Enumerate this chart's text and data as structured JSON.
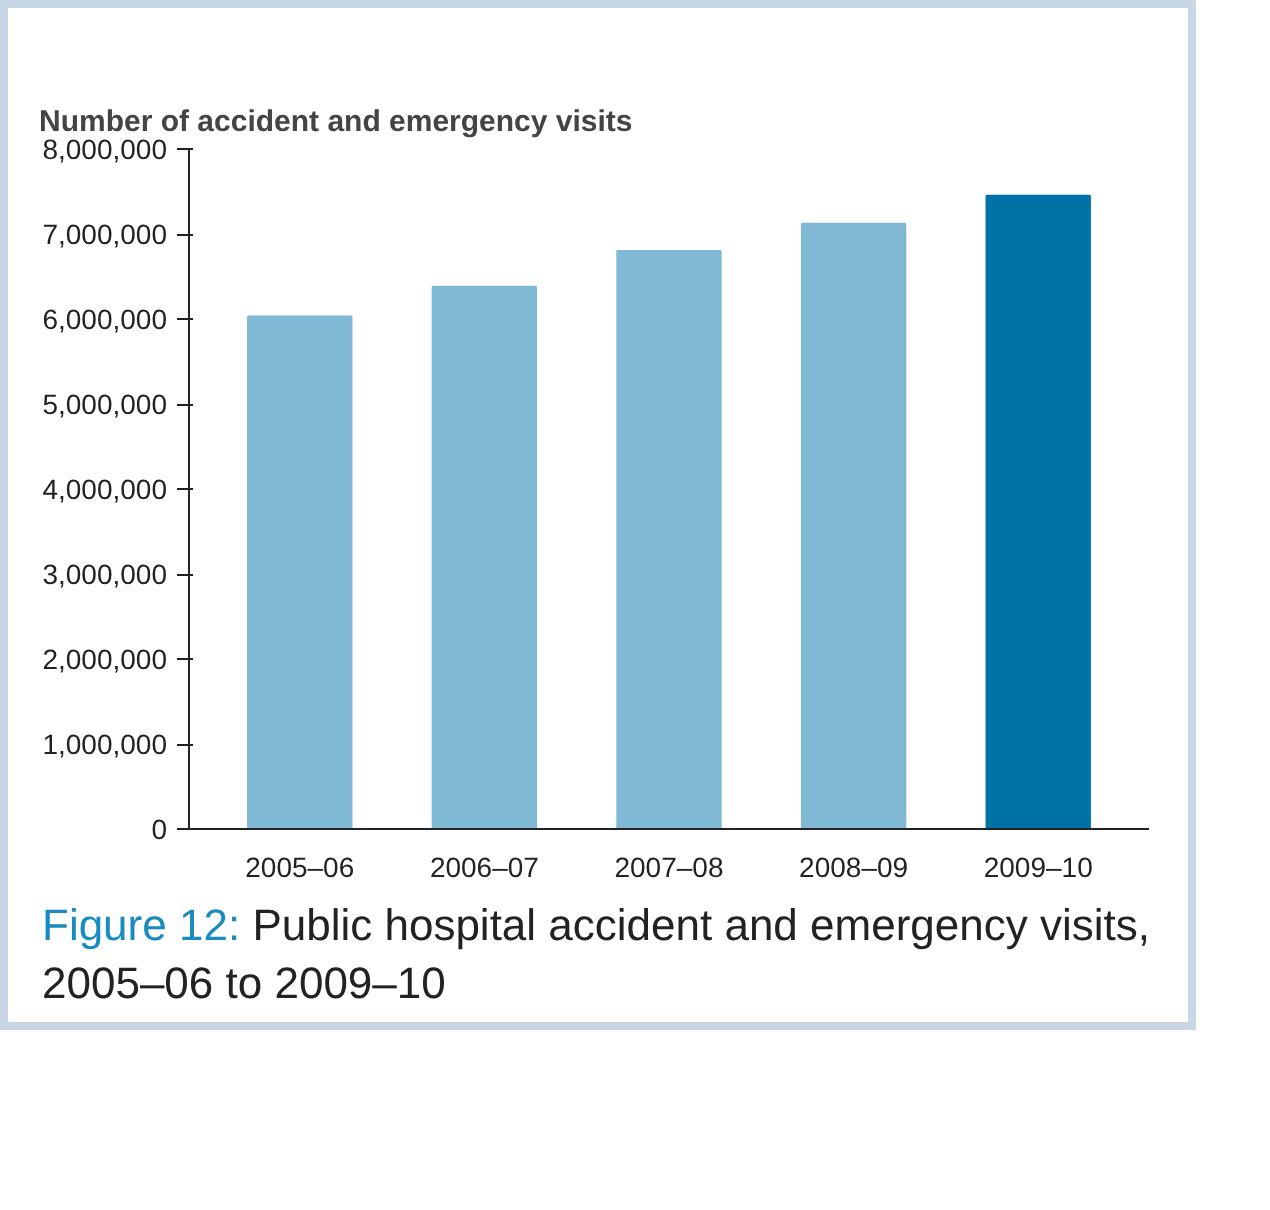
{
  "chart_data": {
    "type": "bar",
    "title": "Figure 12:",
    "subtitle": "Public hospital accident and emergency visits, 2005–06 to 2009–10",
    "ylabel": "Number of accident and emergency visits",
    "categories": [
      "2005–06",
      "2006–07",
      "2007–08",
      "2008–09",
      "2009–10"
    ],
    "values": [
      6030000,
      6380000,
      6800000,
      7120000,
      7450000
    ],
    "colors": [
      "#7fb9d3",
      "#7fb9d3",
      "#7fb9d3",
      "#7fb9d3",
      "#0073a6"
    ],
    "ylim": [
      0,
      8000000
    ],
    "yticks": [
      0,
      {
        "value": 1000000,
        "label": "1,000,000"
      },
      {
        "value": 2000000,
        "label": "2,000,000"
      },
      {
        "value": 3000000,
        "label": "3,000,000"
      },
      {
        "value": 4000000,
        "label": "4,000,000"
      },
      {
        "value": 5000000,
        "label": "5,000,000"
      },
      {
        "value": 6000000,
        "label": "6,000,000"
      },
      {
        "value": 7000000,
        "label": "7,000,000"
      },
      {
        "value": 8000000,
        "label": "8,000,000"
      }
    ],
    "grid": false
  }
}
